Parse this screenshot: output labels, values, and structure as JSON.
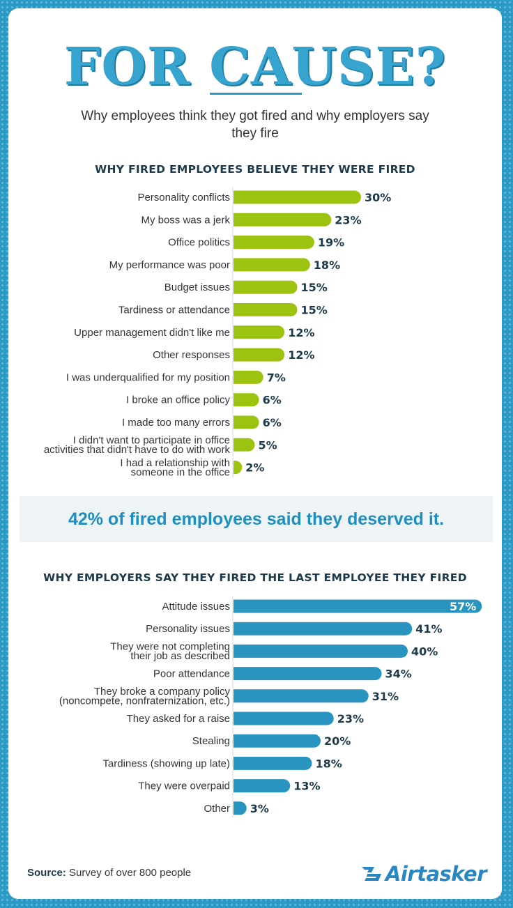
{
  "title": "FOR CAUSE?",
  "subtitle": "Why employees think they got fired and why employers say they fire",
  "callout": "42% of fired employees said they deserved it.",
  "source_label": "Source:",
  "source_text": "Survey of over 800 people",
  "brand": "Airtasker",
  "colors": {
    "employee_bars": "#9cc30f",
    "employer_bars": "#2a94c0",
    "accent": "#2a99c6",
    "heading": "#1d3a4a"
  },
  "chart_data": [
    {
      "type": "bar",
      "orientation": "horizontal",
      "title": "WHY FIRED EMPLOYEES BELIEVE THEY WERE FIRED",
      "unit": "%",
      "categories": [
        [
          "Personality conflicts"
        ],
        [
          "My boss was a jerk"
        ],
        [
          "Office politics"
        ],
        [
          "My performance was poor"
        ],
        [
          "Budget issues"
        ],
        [
          "Tardiness or attendance"
        ],
        [
          "Upper management didn't like me"
        ],
        [
          "Other responses"
        ],
        [
          "I was underqualified for my position"
        ],
        [
          "I broke an office policy"
        ],
        [
          "I made too many errors"
        ],
        [
          "I didn't want to participate in office",
          "activities that didn't have to do with work"
        ],
        [
          "I had a relationship with",
          "someone in the office"
        ]
      ],
      "values": [
        30,
        23,
        19,
        18,
        15,
        15,
        12,
        12,
        7,
        6,
        6,
        5,
        2
      ],
      "labels": [
        "30%",
        "23%",
        "19%",
        "18%",
        "15%",
        "15%",
        "12%",
        "12%",
        "7%",
        "6%",
        "6%",
        "5%",
        "2%"
      ]
    },
    {
      "type": "bar",
      "orientation": "horizontal",
      "title": "WHY EMPLOYERS SAY THEY FIRED THE LAST EMPLOYEE THEY FIRED",
      "unit": "%",
      "categories": [
        [
          "Attitude issues"
        ],
        [
          "Personality issues"
        ],
        [
          "They were not completing",
          "their job as described"
        ],
        [
          "Poor attendance"
        ],
        [
          "They broke a company policy",
          "(noncompete, nonfraternization, etc.)"
        ],
        [
          "They asked for a raise"
        ],
        [
          "Stealing"
        ],
        [
          "Tardiness (showing up late)"
        ],
        [
          "They were overpaid"
        ],
        [
          "Other"
        ]
      ],
      "values": [
        57,
        41,
        40,
        34,
        31,
        23,
        20,
        18,
        13,
        3
      ],
      "labels": [
        "57%",
        "41%",
        "40%",
        "34%",
        "31%",
        "23%",
        "20%",
        "18%",
        "13%",
        "3%"
      ]
    }
  ]
}
